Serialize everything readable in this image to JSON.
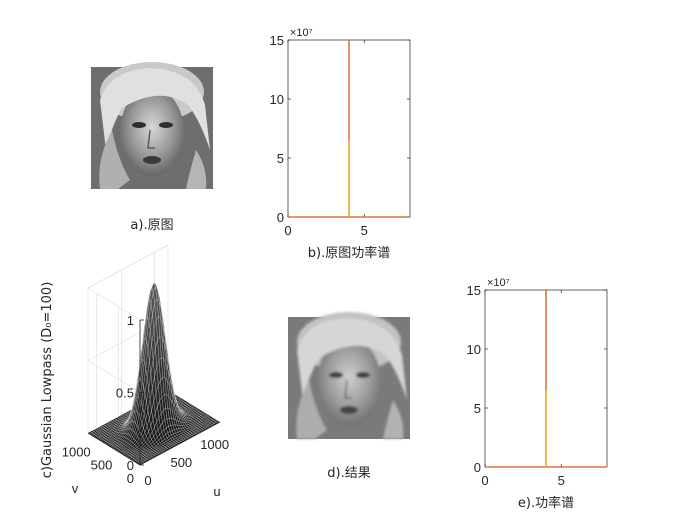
{
  "captions": {
    "a": "a).原图",
    "b": "b).原图功率谱",
    "d": "d).结果",
    "e": "e).功率谱"
  },
  "images": {
    "original": "grayscale portrait photo (original)",
    "result": "grayscale portrait photo (low-pass filtered)"
  },
  "chart_data": [
    {
      "id": "b",
      "type": "line",
      "title": "",
      "xlabel": "b).原图功率谱",
      "ylabel": "",
      "xlim": [
        0,
        8
      ],
      "ylim": [
        0,
        150000000
      ],
      "x_ticks": [
        "0",
        "5"
      ],
      "y_ticks": [
        "0",
        "5",
        "10",
        "15"
      ],
      "exponent_label": "×10⁷",
      "grid": false,
      "series": [
        {
          "color": "#d95319",
          "x": [
            0,
            4,
            4,
            4,
            8
          ],
          "y": [
            0,
            0,
            150000000,
            0,
            0
          ]
        },
        {
          "color": "#edb120",
          "x": [
            4,
            4
          ],
          "y": [
            0,
            65000000
          ]
        }
      ]
    },
    {
      "id": "c",
      "type": "surface",
      "title": "",
      "zlabel": "c)Gaussian Lowpass (D₀=100)",
      "xlabel": "u",
      "ylabel": "v",
      "zlim": [
        0,
        1
      ],
      "z_ticks": [
        "0",
        "0.5",
        "1"
      ],
      "u_ticks": [
        "0",
        "500",
        "1000"
      ],
      "v_ticks": [
        "0",
        "500",
        "1000"
      ],
      "D0": 100,
      "grid": true
    },
    {
      "id": "e",
      "type": "line",
      "title": "",
      "xlabel": "e).功率谱",
      "ylabel": "",
      "xlim": [
        0,
        8
      ],
      "ylim": [
        0,
        150000000
      ],
      "x_ticks": [
        "0",
        "5"
      ],
      "y_ticks": [
        "0",
        "5",
        "10",
        "15"
      ],
      "exponent_label": "×10⁷",
      "grid": false,
      "series": [
        {
          "color": "#d95319",
          "x": [
            0,
            4,
            4,
            4,
            8
          ],
          "y": [
            0,
            0,
            150000000,
            0,
            0
          ]
        },
        {
          "color": "#edb120",
          "x": [
            4,
            4
          ],
          "y": [
            0,
            65000000
          ]
        }
      ]
    }
  ]
}
